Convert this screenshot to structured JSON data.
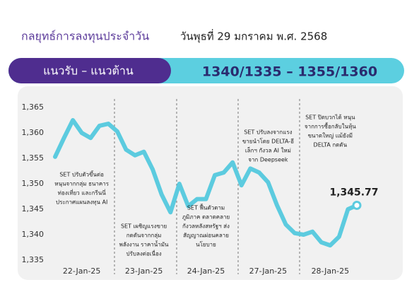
{
  "header": {
    "title": "กลยุทธ์การลงทุนประจำวัน",
    "date": "วันพุธที่ 29 มกราคม พ.ศ. 2568"
  },
  "banner": {
    "label": "แนวรับ – แนวต้าน",
    "levels": "1340/1335 – 1355/1360"
  },
  "chart_data": {
    "type": "line",
    "categories": [
      null,
      null,
      null,
      "22-Jan-25",
      null,
      null,
      null,
      null,
      null,
      null,
      "23-Jan-25",
      null,
      null,
      null,
      null,
      null,
      null,
      "24-Jan-25",
      null,
      null,
      null,
      null,
      null,
      null,
      "27-Jan-25",
      null,
      null,
      null,
      null,
      null,
      null,
      "28-Jan-25",
      null,
      null,
      null
    ],
    "values": [
      1355.3,
      1359,
      1362.5,
      1360,
      1359,
      1361.4,
      1361.8,
      1360.3,
      1356.7,
      1355.6,
      1356.3,
      1352.8,
      1347.9,
      1344.4,
      1350,
      1345.6,
      1347,
      1347,
      1351.7,
      1352.2,
      1354.2,
      1349.7,
      1353,
      1352.2,
      1350.3,
      1345.8,
      1342,
      1340.3,
      1340,
      1340.6,
      1338.5,
      1337.9,
      1339.6,
      1345,
      1345.77
    ],
    "value_labels": [
      null,
      null,
      null,
      null,
      null,
      null,
      null,
      null,
      null,
      null,
      null,
      null,
      null,
      null,
      null,
      null,
      null,
      null,
      null,
      null,
      null,
      null,
      null,
      null,
      null,
      null,
      null,
      null,
      null,
      null,
      null,
      null,
      null,
      null,
      "1,345.77"
    ],
    "color": "#5ccbdf",
    "ylim": [
      1335,
      1365
    ],
    "yticks": [
      {
        "value": 1335,
        "label": "1,335"
      },
      {
        "value": 1340,
        "label": "1,340"
      },
      {
        "value": 1345,
        "label": "1,345"
      },
      {
        "value": 1350,
        "label": "1,350"
      },
      {
        "value": 1355,
        "label": "1,355"
      },
      {
        "value": 1360,
        "label": "1,360"
      },
      {
        "value": 1365,
        "label": "1,365"
      }
    ],
    "grid": false,
    "annotations": [
      [
        "SET ปรับตัวขึ้นต่อ",
        "หนุนจากกลุ่ม ธนาคาร",
        "ท่องเที่ยว และกรีนนี่",
        "ประกาศแผนลงทุน AI"
      ],
      [
        "SET เผชิญแรงขาย",
        "กดดันจากกลุ่ม",
        "พลังงาน ราคาน้ำมัน",
        "ปรับลงต่อเนื่อง"
      ],
      [
        "SET ฟื้นตัวตาม",
        "ภูมิภาค ตลาดคลาย",
        "กังวลหลังสหรัฐฯ ส่ง",
        "สัญญาณผ่อนคลาย",
        "นโยบาย"
      ],
      [
        "SET ปรับลงจากแรง",
        "ขายนำโดย DELTA-อี",
        "เล็กฯ กังวล AI ใหม่",
        "จาก Deepseek"
      ],
      [
        "SET ปิดบวกได้ หนุน",
        "จากการซื้อกลับในหุ้น",
        "ขนาดใหญ่ แม้ยังมี",
        "DELTA กดดัน"
      ]
    ]
  }
}
